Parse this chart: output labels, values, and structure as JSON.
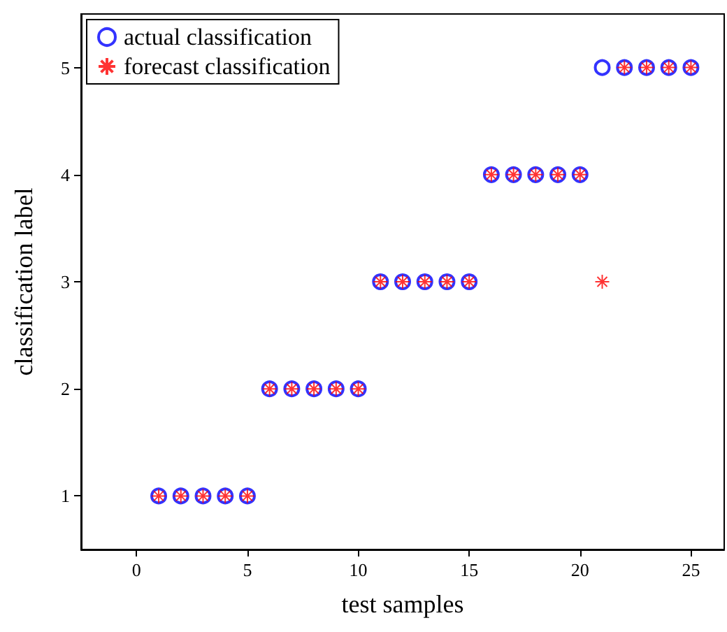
{
  "chart_data": {
    "type": "scatter",
    "xlabel": "test samples",
    "ylabel": "classification label",
    "x": [
      1,
      2,
      3,
      4,
      5,
      6,
      7,
      8,
      9,
      10,
      11,
      12,
      13,
      14,
      15,
      16,
      17,
      18,
      19,
      20,
      21,
      22,
      23,
      24,
      25
    ],
    "series": [
      {
        "name": "actual classification",
        "color": "#0000ff",
        "marker": "circle",
        "values": [
          1,
          1,
          1,
          1,
          1,
          2,
          2,
          2,
          2,
          2,
          3,
          3,
          3,
          3,
          3,
          4,
          4,
          4,
          4,
          4,
          5,
          5,
          5,
          5,
          5
        ]
      },
      {
        "name": "forecast classification",
        "color": "#ff0000",
        "marker": "cross",
        "values": [
          1,
          1,
          1,
          1,
          1,
          2,
          2,
          2,
          2,
          2,
          3,
          3,
          3,
          3,
          3,
          4,
          4,
          4,
          4,
          4,
          3,
          5,
          5,
          5,
          5
        ]
      }
    ],
    "xlim": [
      -2.5,
      26.5
    ],
    "xticks": [
      0,
      5,
      10,
      15,
      20,
      25
    ],
    "ylim": [
      0.5,
      5.5
    ],
    "yticks": [
      1,
      2,
      3,
      4,
      5
    ],
    "grid": false,
    "legend": "top left"
  }
}
